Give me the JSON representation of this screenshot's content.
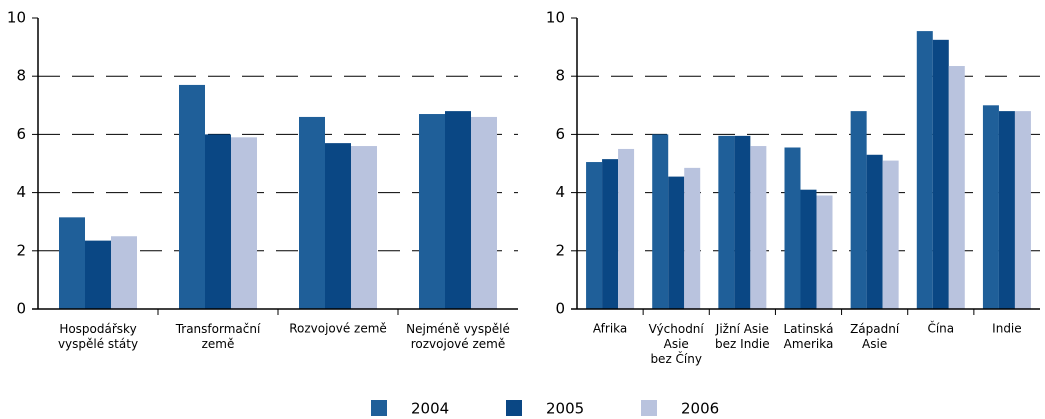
{
  "chart_data": [
    {
      "type": "bar",
      "categories": [
        "Hospodářsky\nvyspělé státy",
        "Transformační\nzemě",
        "Rozvojové země",
        "Nejméně vyspělé\nrozvojové země"
      ],
      "series": [
        {
          "name": "2004",
          "color": "#1f5f99",
          "values": [
            3.15,
            7.7,
            6.6,
            6.7
          ]
        },
        {
          "name": "2005",
          "color": "#0a4784",
          "values": [
            2.35,
            6.0,
            5.7,
            6.8
          ]
        },
        {
          "name": "2006",
          "color": "#b9c3de",
          "values": [
            2.5,
            5.9,
            5.6,
            6.6
          ]
        }
      ],
      "ylim": [
        0,
        10
      ],
      "yticks": [
        0,
        2,
        4,
        6,
        8,
        10
      ],
      "grid": true
    },
    {
      "type": "bar",
      "categories": [
        "Afrika",
        "Východní\nAsie\nbez Číny",
        "Jižní Asie\nbez Indie",
        "Latinská\nAmerika",
        "Západní\nAsie",
        "Čína",
        "Indie"
      ],
      "series": [
        {
          "name": "2004",
          "color": "#1f5f99",
          "values": [
            5.05,
            6.0,
            5.95,
            5.55,
            6.8,
            9.55,
            7.0
          ]
        },
        {
          "name": "2005",
          "color": "#0a4784",
          "values": [
            5.15,
            4.55,
            5.95,
            4.1,
            5.3,
            9.25,
            6.8
          ]
        },
        {
          "name": "2006",
          "color": "#b9c3de",
          "values": [
            5.5,
            4.85,
            5.6,
            3.9,
            5.1,
            8.35,
            6.8
          ]
        }
      ],
      "ylim": [
        0,
        10
      ],
      "yticks": [
        0,
        2,
        4,
        6,
        8,
        10
      ],
      "grid": true
    }
  ]
}
